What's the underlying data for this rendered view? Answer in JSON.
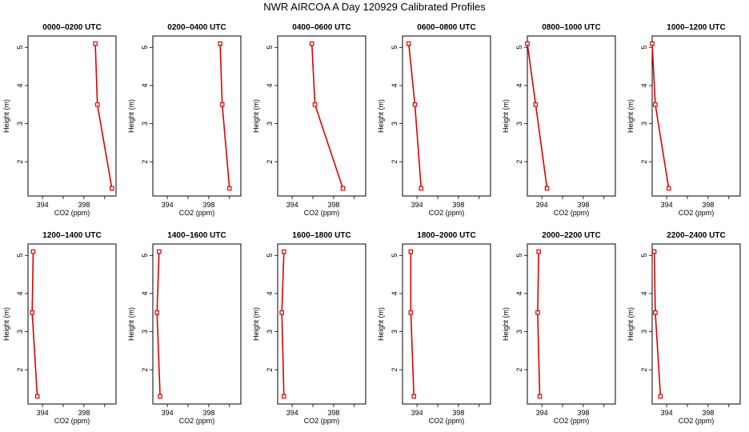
{
  "figure": {
    "title": "NWR AIRCOA A  Day 120929  Calibrated Profiles"
  },
  "chart_data": [
    {
      "type": "line",
      "title": "0000–0200 UTC",
      "xlabel": "CO2 (ppm)",
      "ylabel": "Height (m)",
      "xlim": [
        392.6,
        401.1
      ],
      "ylim": [
        1.1,
        5.3
      ],
      "xticks": [
        394,
        398
      ],
      "yticks": [
        2,
        3,
        4,
        5
      ],
      "series": [
        {
          "x": [
            400.7,
            399.3,
            399.1
          ],
          "y": [
            1.3,
            3.5,
            5.1
          ]
        }
      ],
      "color": "#dd0000",
      "grid": false
    },
    {
      "type": "line",
      "title": "0200–0400 UTC",
      "xlabel": "CO2 (ppm)",
      "ylabel": "Height (m)",
      "xlim": [
        392.6,
        401.1
      ],
      "ylim": [
        1.1,
        5.3
      ],
      "xticks": [
        394,
        398
      ],
      "yticks": [
        2,
        3,
        4,
        5
      ],
      "series": [
        {
          "x": [
            400.0,
            399.3,
            399.1
          ],
          "y": [
            1.3,
            3.5,
            5.1
          ]
        }
      ],
      "color": "#dd0000",
      "grid": false
    },
    {
      "type": "line",
      "title": "0400–0600 UTC",
      "xlabel": "CO2 (ppm)",
      "ylabel": "Height (m)",
      "xlim": [
        392.6,
        401.1
      ],
      "ylim": [
        1.1,
        5.3
      ],
      "xticks": [
        394,
        398
      ],
      "yticks": [
        2,
        3,
        4,
        5
      ],
      "series": [
        {
          "x": [
            398.9,
            396.2,
            395.9
          ],
          "y": [
            1.3,
            3.5,
            5.1
          ]
        }
      ],
      "color": "#dd0000",
      "grid": false
    },
    {
      "type": "line",
      "title": "0600–0800 UTC",
      "xlabel": "CO2 (ppm)",
      "ylabel": "Height (m)",
      "xlim": [
        392.6,
        401.1
      ],
      "ylim": [
        1.1,
        5.3
      ],
      "xticks": [
        394,
        398
      ],
      "yticks": [
        2,
        3,
        4,
        5
      ],
      "series": [
        {
          "x": [
            394.4,
            393.8,
            393.2
          ],
          "y": [
            1.3,
            3.5,
            5.1
          ]
        }
      ],
      "color": "#dd0000",
      "grid": false
    },
    {
      "type": "line",
      "title": "0800–1000 UTC",
      "xlabel": "CO2 (ppm)",
      "ylabel": "Height (m)",
      "xlim": [
        392.6,
        401.1
      ],
      "ylim": [
        1.1,
        5.3
      ],
      "xticks": [
        394,
        398
      ],
      "yticks": [
        2,
        3,
        4,
        5
      ],
      "series": [
        {
          "x": [
            394.5,
            393.4,
            392.6
          ],
          "y": [
            1.3,
            3.5,
            5.1
          ]
        }
      ],
      "color": "#dd0000",
      "grid": false
    },
    {
      "type": "line",
      "title": "1000–1200 UTC",
      "xlabel": "CO2 (ppm)",
      "ylabel": "Height (m)",
      "xlim": [
        392.6,
        401.1
      ],
      "ylim": [
        1.1,
        5.3
      ],
      "xticks": [
        394,
        398
      ],
      "yticks": [
        2,
        3,
        4,
        5
      ],
      "series": [
        {
          "x": [
            394.2,
            392.9,
            392.6
          ],
          "y": [
            1.3,
            3.5,
            5.1
          ]
        }
      ],
      "color": "#dd0000",
      "grid": false
    },
    {
      "type": "line",
      "title": "1200–1400 UTC",
      "xlabel": "CO2 (ppm)",
      "ylabel": "Height (m)",
      "xlim": [
        392.6,
        401.1
      ],
      "ylim": [
        1.1,
        5.3
      ],
      "xticks": [
        394,
        398
      ],
      "yticks": [
        2,
        3,
        4,
        5
      ],
      "series": [
        {
          "x": [
            393.5,
            393.0,
            393.1
          ],
          "y": [
            1.3,
            3.5,
            5.1
          ]
        }
      ],
      "color": "#dd0000",
      "grid": false
    },
    {
      "type": "line",
      "title": "1400–1600 UTC",
      "xlabel": "CO2 (ppm)",
      "ylabel": "Height (m)",
      "xlim": [
        392.6,
        401.1
      ],
      "ylim": [
        1.1,
        5.3
      ],
      "xticks": [
        394,
        398
      ],
      "yticks": [
        2,
        3,
        4,
        5
      ],
      "series": [
        {
          "x": [
            393.3,
            393.0,
            393.2
          ],
          "y": [
            1.3,
            3.5,
            5.1
          ]
        }
      ],
      "color": "#dd0000",
      "grid": false
    },
    {
      "type": "line",
      "title": "1600–1800 UTC",
      "xlabel": "CO2 (ppm)",
      "ylabel": "Height (m)",
      "xlim": [
        392.6,
        401.1
      ],
      "ylim": [
        1.1,
        5.3
      ],
      "xticks": [
        394,
        398
      ],
      "yticks": [
        2,
        3,
        4,
        5
      ],
      "series": [
        {
          "x": [
            393.2,
            393.0,
            393.2
          ],
          "y": [
            1.3,
            3.5,
            5.1
          ]
        }
      ],
      "color": "#dd0000",
      "grid": false
    },
    {
      "type": "line",
      "title": "1800–2000 UTC",
      "xlabel": "CO2 (ppm)",
      "ylabel": "Height (m)",
      "xlim": [
        392.6,
        401.1
      ],
      "ylim": [
        1.1,
        5.3
      ],
      "xticks": [
        394,
        398
      ],
      "yticks": [
        2,
        3,
        4,
        5
      ],
      "series": [
        {
          "x": [
            393.7,
            393.4,
            393.4
          ],
          "y": [
            1.3,
            3.5,
            5.1
          ]
        }
      ],
      "color": "#dd0000",
      "grid": false
    },
    {
      "type": "line",
      "title": "2000–2200 UTC",
      "xlabel": "CO2 (ppm)",
      "ylabel": "Height (m)",
      "xlim": [
        392.6,
        401.1
      ],
      "ylim": [
        1.1,
        5.3
      ],
      "xticks": [
        394,
        398
      ],
      "yticks": [
        2,
        3,
        4,
        5
      ],
      "series": [
        {
          "x": [
            393.8,
            393.6,
            393.7
          ],
          "y": [
            1.3,
            3.5,
            5.1
          ]
        }
      ],
      "color": "#dd0000",
      "grid": false
    },
    {
      "type": "line",
      "title": "2200–2400 UTC",
      "xlabel": "CO2 (ppm)",
      "ylabel": "Height (m)",
      "xlim": [
        392.6,
        401.1
      ],
      "ylim": [
        1.1,
        5.3
      ],
      "xticks": [
        394,
        398
      ],
      "yticks": [
        2,
        3,
        4,
        5
      ],
      "series": [
        {
          "x": [
            393.4,
            392.9,
            392.8
          ],
          "y": [
            1.3,
            3.5,
            5.1
          ]
        }
      ],
      "color": "#dd0000",
      "grid": false
    }
  ]
}
